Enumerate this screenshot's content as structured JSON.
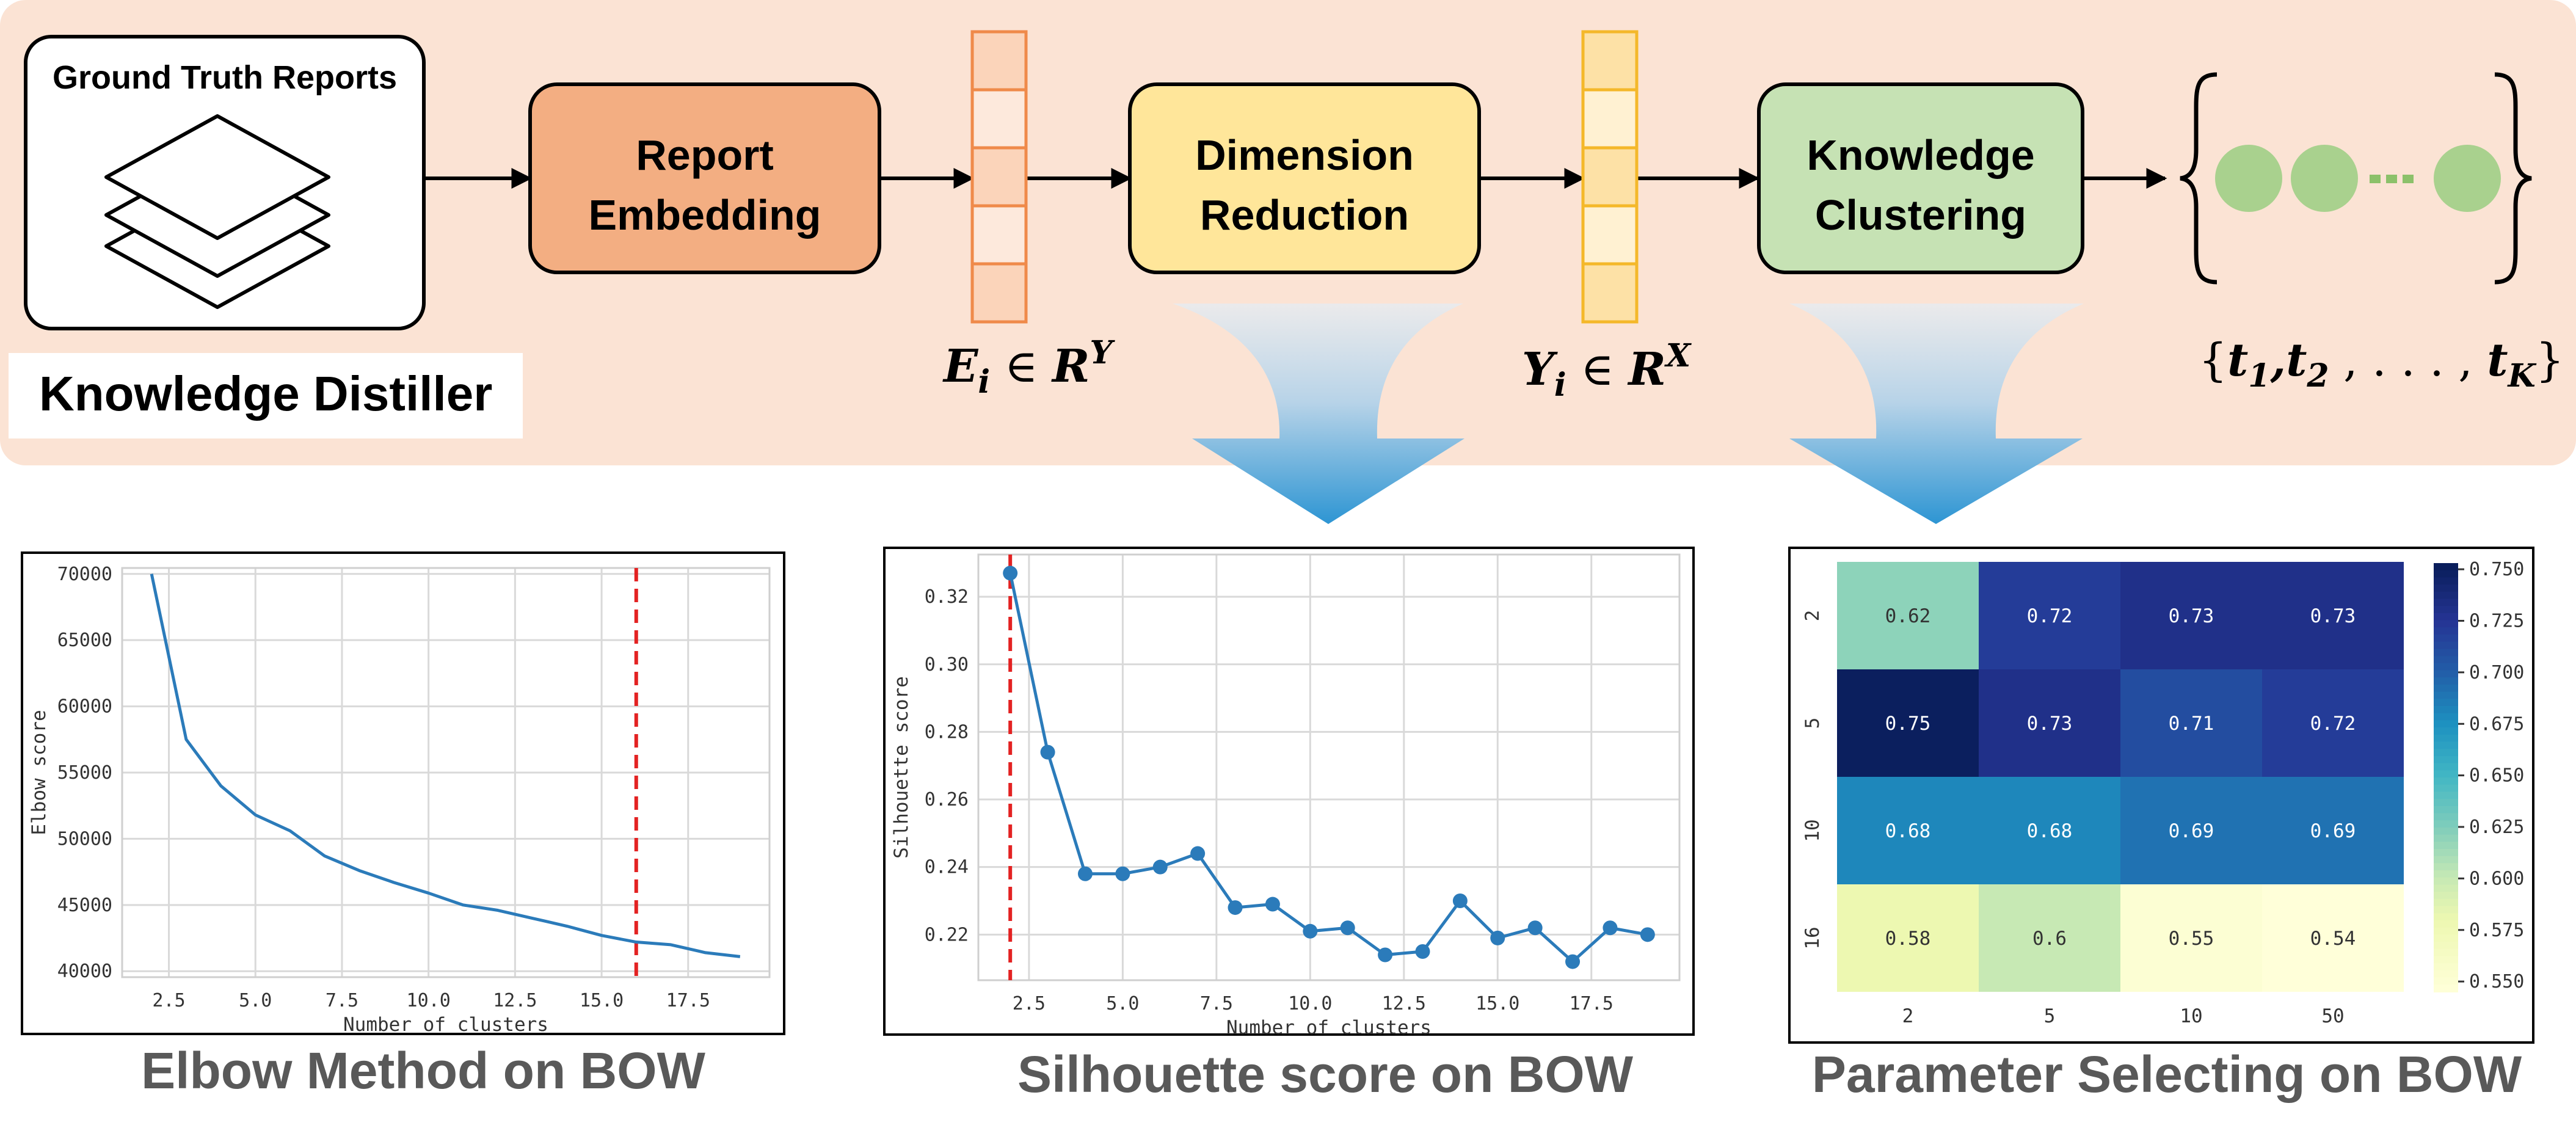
{
  "pipeline": {
    "reports_title": "Ground Truth Reports",
    "distiller_label": "Knowledge Distiller",
    "stages": [
      {
        "line1": "Report",
        "line2": "Embedding",
        "fill": "#f3ae82"
      },
      {
        "line1": "Dimension",
        "line2": "Reduction",
        "fill": "#ffe69a"
      },
      {
        "line1": "Knowledge",
        "line2": "Clustering",
        "fill": "#c6e2b4"
      }
    ],
    "embedding_symbol": {
      "base": "E",
      "sub": "i",
      "rel": " ∈ ",
      "space": "R",
      "sup": "Y"
    },
    "reduced_symbol": {
      "base": "Y",
      "sub": "i",
      "rel": " ∈ ",
      "space": "R",
      "sup": "X"
    },
    "topics_set": {
      "open": "{",
      "t": "t",
      "subs": [
        "1",
        "2",
        "K"
      ],
      "sep": ",",
      "ellipsis": " , . . . , ",
      "close": "}"
    },
    "colors": {
      "band": "#fbe3d4",
      "embed_vector": "#fbd4ba",
      "embed_vector_stroke": "#ef8a4a",
      "reduce_vector": "#fde1a6",
      "reduce_vector_stroke": "#f4b82a",
      "cluster_dot": "#a9d18e"
    }
  },
  "captions": {
    "elbow": "Elbow Method on BOW",
    "silhouette": "Silhouette score on BOW",
    "parameter": "Parameter Selecting on BOW"
  },
  "chart_data": [
    {
      "type": "line",
      "xlabel": "Number of clusters",
      "ylabel": "Elbow score",
      "x": [
        2,
        3,
        4,
        5,
        6,
        7,
        8,
        9,
        10,
        11,
        12,
        13,
        14,
        15,
        16,
        17,
        18,
        19
      ],
      "y": [
        70000,
        57500,
        54000,
        51800,
        50600,
        48700,
        47600,
        46700,
        45900,
        45000,
        44600,
        44000,
        43400,
        42700,
        42200,
        42000,
        41400,
        41100
      ],
      "xticks": [
        "2.5",
        "5.0",
        "7.5",
        "10.0",
        "12.5",
        "15.0",
        "17.5"
      ],
      "xtick_values": [
        2.5,
        5,
        7.5,
        10,
        12.5,
        15,
        17.5
      ],
      "yticks": [
        "40000",
        "45000",
        "50000",
        "55000",
        "60000",
        "65000",
        "70000"
      ],
      "ytick_values": [
        40000,
        45000,
        50000,
        55000,
        60000,
        65000,
        70000
      ],
      "xlim": [
        1.15,
        19.85
      ],
      "ylim": [
        39550,
        70450
      ],
      "vline": 16,
      "grid": true,
      "markers": false
    },
    {
      "type": "line",
      "xlabel": "Number of clusters",
      "ylabel": "Silhouette score",
      "x": [
        2,
        3,
        4,
        5,
        6,
        7,
        8,
        9,
        10,
        11,
        12,
        13,
        14,
        15,
        16,
        17,
        18,
        19
      ],
      "y": [
        0.327,
        0.274,
        0.238,
        0.238,
        0.24,
        0.244,
        0.228,
        0.229,
        0.221,
        0.222,
        0.214,
        0.215,
        0.23,
        0.219,
        0.222,
        0.212,
        0.222,
        0.22
      ],
      "xticks": [
        "2.5",
        "5.0",
        "7.5",
        "10.0",
        "12.5",
        "15.0",
        "17.5"
      ],
      "xtick_values": [
        2.5,
        5,
        7.5,
        10,
        12.5,
        15,
        17.5
      ],
      "yticks": [
        "0.22",
        "0.24",
        "0.26",
        "0.28",
        "0.30",
        "0.32"
      ],
      "ytick_values": [
        0.22,
        0.24,
        0.26,
        0.28,
        0.3,
        0.32
      ],
      "xlim": [
        1.15,
        19.85
      ],
      "ylim": [
        0.2065,
        0.3325
      ],
      "vline": 2,
      "grid": true,
      "markers": true
    },
    {
      "type": "heatmap",
      "row_labels": [
        "2",
        "5",
        "10",
        "16"
      ],
      "col_labels": [
        "2",
        "5",
        "10",
        "50"
      ],
      "values": [
        [
          0.62,
          0.72,
          0.73,
          0.73
        ],
        [
          0.75,
          0.73,
          0.71,
          0.72
        ],
        [
          0.68,
          0.68,
          0.69,
          0.69
        ],
        [
          0.58,
          0.6,
          0.55,
          0.54
        ]
      ],
      "cell_labels": [
        [
          "0.62",
          "0.72",
          "0.73",
          "0.73"
        ],
        [
          "0.75",
          "0.73",
          "0.71",
          "0.72"
        ],
        [
          "0.68",
          "0.68",
          "0.69",
          "0.69"
        ],
        [
          "0.58",
          "0.6",
          "0.55",
          "0.54"
        ]
      ],
      "colorbar_ticks": [
        "0.750",
        "0.725",
        "0.700",
        "0.675",
        "0.650",
        "0.625",
        "0.600",
        "0.575",
        "0.550"
      ],
      "colorbar_tick_values": [
        0.75,
        0.725,
        0.7,
        0.675,
        0.65,
        0.625,
        0.6,
        0.575,
        0.55
      ],
      "vmin": 0.545,
      "vmax": 0.753,
      "colormap": "YlGnBu"
    }
  ]
}
